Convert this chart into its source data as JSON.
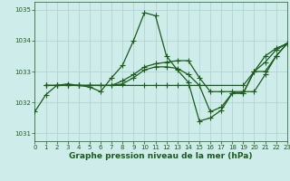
{
  "title": "Graphe pression niveau de la mer (hPa)",
  "background_color": "#ceecea",
  "line_color": "#1a5c1a",
  "grid_color": "#aed0cc",
  "xlim": [
    0,
    23
  ],
  "ylim": [
    1030.75,
    1035.25
  ],
  "yticks": [
    1031,
    1032,
    1033,
    1034,
    1035
  ],
  "xticks": [
    0,
    1,
    2,
    3,
    4,
    5,
    6,
    7,
    8,
    9,
    10,
    11,
    12,
    13,
    14,
    15,
    16,
    17,
    18,
    19,
    20,
    21,
    22,
    23
  ],
  "series": [
    {
      "x": [
        0,
        1,
        2,
        3,
        4,
        5,
        6,
        7,
        8,
        9,
        10,
        11,
        12,
        13,
        14,
        15,
        16,
        17,
        18,
        19,
        20,
        21,
        22,
        23
      ],
      "y": [
        1031.7,
        1032.25,
        1032.55,
        1032.6,
        1032.55,
        1032.5,
        1032.35,
        1032.8,
        1033.2,
        1034.0,
        1034.9,
        1034.8,
        1033.5,
        1033.05,
        1032.65,
        1031.4,
        1031.5,
        1031.75,
        1032.3,
        1032.3,
        1033.0,
        1033.5,
        1033.75,
        1033.9
      ]
    },
    {
      "x": [
        1,
        2,
        3,
        4,
        5,
        10,
        11,
        12,
        13,
        14,
        15,
        19,
        20,
        21,
        22,
        23
      ],
      "y": [
        1032.55,
        1032.55,
        1032.55,
        1032.55,
        1032.55,
        1032.55,
        1032.55,
        1032.55,
        1032.55,
        1032.55,
        1032.55,
        1032.55,
        1033.0,
        1033.3,
        1033.7,
        1033.9
      ]
    },
    {
      "x": [
        1,
        2,
        3,
        4,
        5,
        6,
        7,
        8,
        9,
        10,
        11,
        12,
        13,
        14,
        15,
        16,
        17,
        18,
        19,
        20,
        21,
        22,
        23
      ],
      "y": [
        1032.55,
        1032.55,
        1032.55,
        1032.55,
        1032.55,
        1032.55,
        1032.55,
        1032.7,
        1032.9,
        1033.15,
        1033.25,
        1033.3,
        1033.35,
        1033.35,
        1032.8,
        1032.35,
        1032.35,
        1032.35,
        1032.35,
        1032.35,
        1032.9,
        1033.5,
        1033.9
      ]
    },
    {
      "x": [
        1,
        2,
        3,
        4,
        5,
        6,
        7,
        8,
        9,
        10,
        11,
        12,
        13,
        14,
        15,
        16,
        17,
        18,
        19,
        20,
        21,
        22,
        23
      ],
      "y": [
        1032.55,
        1032.55,
        1032.55,
        1032.55,
        1032.55,
        1032.55,
        1032.55,
        1032.6,
        1032.8,
        1033.05,
        1033.15,
        1033.15,
        1033.1,
        1032.9,
        1032.55,
        1031.7,
        1031.85,
        1032.3,
        1032.3,
        1033.0,
        1033.0,
        1033.5,
        1033.9
      ]
    }
  ],
  "marker": "+",
  "marker_size": 4,
  "linewidth": 0.9,
  "title_fontsize": 6.5,
  "tick_fontsize": 5.0
}
